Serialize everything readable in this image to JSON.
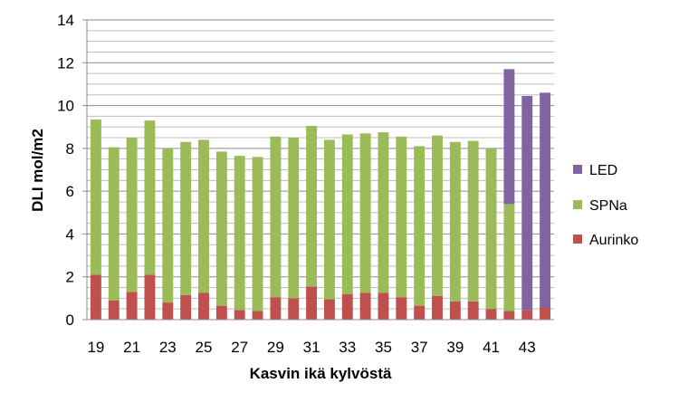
{
  "chart_data": {
    "type": "bar",
    "stacked": true,
    "x": [
      19,
      20,
      21,
      22,
      23,
      24,
      25,
      26,
      27,
      28,
      29,
      30,
      31,
      32,
      33,
      34,
      35,
      36,
      37,
      38,
      39,
      40,
      41,
      42,
      43,
      44
    ],
    "x_tick_labels": [
      "19",
      "21",
      "23",
      "25",
      "27",
      "29",
      "31",
      "33",
      "35",
      "37",
      "39",
      "41",
      "43"
    ],
    "series": [
      {
        "name": "Aurinko",
        "color": "#c0504d",
        "values": [
          2.1,
          0.9,
          1.3,
          2.1,
          0.8,
          1.15,
          1.25,
          0.65,
          0.45,
          0.4,
          1.05,
          1.0,
          1.55,
          0.95,
          1.2,
          1.25,
          1.25,
          1.05,
          0.65,
          1.1,
          0.85,
          0.85,
          0.5,
          0.4,
          0.45,
          0.55
        ]
      },
      {
        "name": "SPNa",
        "color": "#9bbb59",
        "values": [
          7.25,
          7.15,
          7.2,
          7.2,
          7.2,
          7.15,
          7.15,
          7.2,
          7.2,
          7.2,
          7.5,
          7.5,
          7.5,
          7.45,
          7.45,
          7.45,
          7.5,
          7.5,
          7.45,
          7.5,
          7.45,
          7.5,
          7.5,
          5.0,
          0,
          0
        ]
      },
      {
        "name": "LED",
        "color": "#8064a2",
        "values": [
          0,
          0,
          0,
          0,
          0,
          0,
          0,
          0,
          0,
          0,
          0,
          0,
          0,
          0,
          0,
          0,
          0,
          0,
          0,
          0,
          0,
          0,
          0,
          6.3,
          10.0,
          10.05
        ]
      }
    ],
    "xlabel": "Kasvin ikä kylvöstä",
    "ylabel": "DLI mol/m2",
    "ylim": [
      0,
      14
    ],
    "y_ticks": [
      0,
      2,
      4,
      6,
      8,
      10,
      12,
      14
    ],
    "minor_grid_step": 0.5,
    "grid": true,
    "legend_position": "right",
    "legend_order": [
      "LED",
      "SPNa",
      "Aurinko"
    ]
  }
}
